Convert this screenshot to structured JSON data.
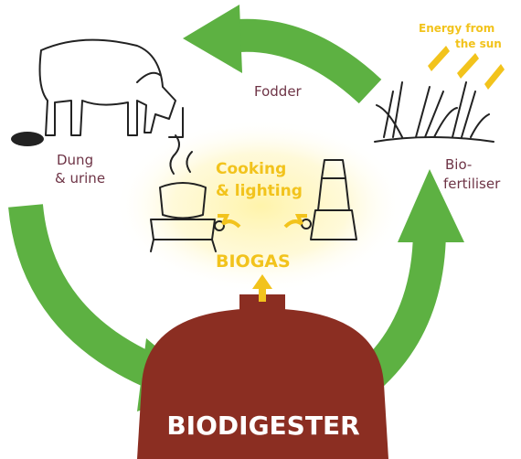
{
  "labels": {
    "fodder": "Fodder",
    "energy": [
      "Energy from",
      "the sun"
    ],
    "dung_urine": [
      "Dung",
      "& urine"
    ],
    "cooking_lighting": [
      "Cooking",
      "& lighting"
    ],
    "biogas": "BIOGAS",
    "bio_fertiliser": [
      "Bio-",
      "fertiliser"
    ],
    "biodigester": "BIODIGESTER"
  }
}
